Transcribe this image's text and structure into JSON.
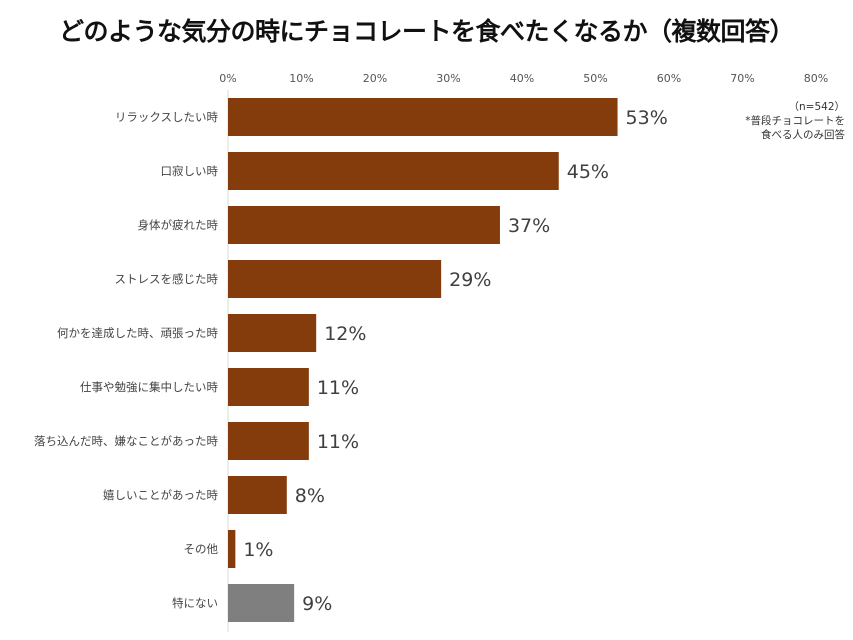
{
  "chart_data": {
    "type": "bar",
    "orientation": "horizontal",
    "title": "どのような気分の時にチョコレートを食べたくなるか（複数回答）",
    "categories": [
      "リラックスしたい時",
      "口寂しい時",
      "身体が疲れた時",
      "ストレスを感じた時",
      "何かを達成した時、頑張った時",
      "仕事や勉強に集中したい時",
      "落ち込んだ時、嫌なことがあった時",
      "嬉しいことがあった時",
      "その他",
      "特にない"
    ],
    "values": [
      53,
      45,
      37,
      29,
      12,
      11,
      11,
      8,
      1,
      9
    ],
    "data_labels": [
      "53%",
      "45%",
      "37%",
      "29%",
      "12%",
      "11%",
      "11%",
      "8%",
      "1%",
      "9%"
    ],
    "bar_colors": [
      "#843C0C",
      "#843C0C",
      "#843C0C",
      "#843C0C",
      "#843C0C",
      "#843C0C",
      "#843C0C",
      "#843C0C",
      "#843C0C",
      "#7F7F7F"
    ],
    "xlim": [
      0,
      80
    ],
    "xticks": [
      "0%",
      "10%",
      "20%",
      "30%",
      "40%",
      "50%",
      "60%",
      "70%",
      "80%"
    ],
    "x_axis_position": "top",
    "grid": false,
    "notes": [
      "（n=542）",
      "*普段チョコレートを",
      "食べる人のみ回答"
    ]
  }
}
